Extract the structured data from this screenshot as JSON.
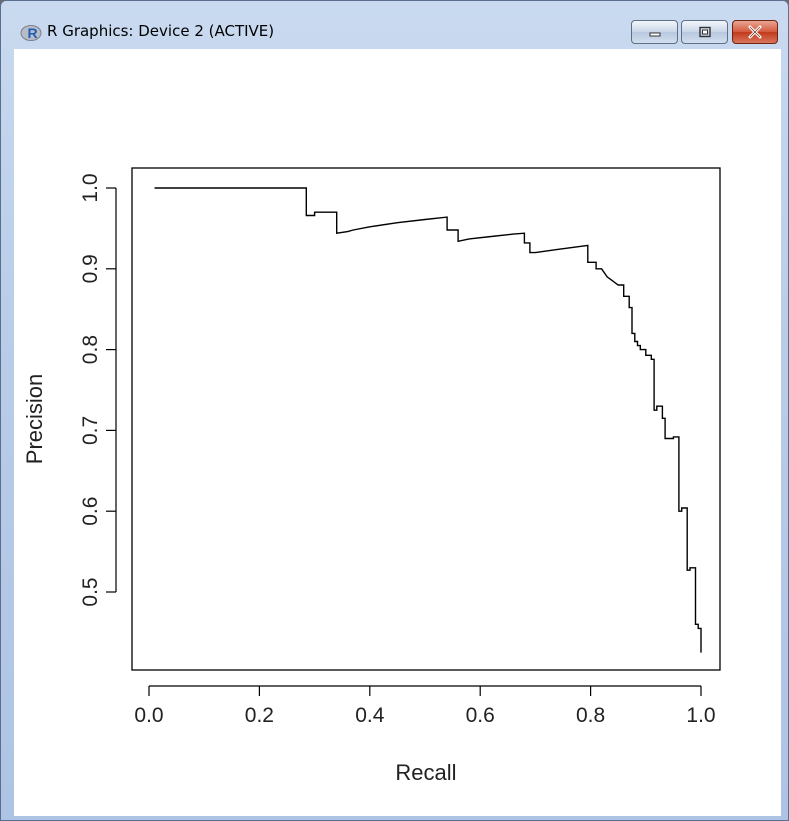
{
  "window": {
    "title": "R Graphics: Device 2 (ACTIVE)",
    "controls": [
      "minimize",
      "maximize",
      "close"
    ]
  },
  "chart_data": {
    "type": "line",
    "title": "",
    "xlabel": "Recall",
    "ylabel": "Precision",
    "xlim": [
      0.0,
      1.0
    ],
    "ylim": [
      0.4,
      1.0
    ],
    "xticks": [
      "0.0",
      "0.2",
      "0.4",
      "0.6",
      "0.8",
      "1.0"
    ],
    "yticks": [
      "0.5",
      "0.6",
      "0.7",
      "0.8",
      "0.9",
      "1.0"
    ],
    "grid": false,
    "series": [
      {
        "x": [
          0.01,
          0.285,
          0.285,
          0.3,
          0.3,
          0.34,
          0.34,
          0.36,
          0.37,
          0.4,
          0.45,
          0.5,
          0.54,
          0.54,
          0.56,
          0.56,
          0.58,
          0.62,
          0.66,
          0.68,
          0.68,
          0.69,
          0.69,
          0.7,
          0.74,
          0.795,
          0.795,
          0.81,
          0.81,
          0.82,
          0.83,
          0.83,
          0.84,
          0.84,
          0.85,
          0.86,
          0.86,
          0.87,
          0.87,
          0.875,
          0.875,
          0.88,
          0.88,
          0.885,
          0.885,
          0.89,
          0.89,
          0.9,
          0.9,
          0.91,
          0.91,
          0.915,
          0.915,
          0.92,
          0.92,
          0.93,
          0.93,
          0.935,
          0.935,
          0.95,
          0.95,
          0.96,
          0.96,
          0.965,
          0.965,
          0.975,
          0.975,
          0.98,
          0.98,
          0.99,
          0.99,
          0.995,
          0.995,
          1.0,
          1.0
        ],
        "y": [
          1.0,
          1.0,
          0.966,
          0.966,
          0.97,
          0.97,
          0.944,
          0.946,
          0.948,
          0.952,
          0.957,
          0.961,
          0.964,
          0.948,
          0.948,
          0.934,
          0.937,
          0.94,
          0.943,
          0.944,
          0.932,
          0.932,
          0.92,
          0.92,
          0.924,
          0.929,
          0.908,
          0.908,
          0.9,
          0.9,
          0.89,
          0.89,
          0.885,
          0.885,
          0.88,
          0.88,
          0.866,
          0.866,
          0.852,
          0.852,
          0.82,
          0.82,
          0.81,
          0.81,
          0.805,
          0.805,
          0.8,
          0.8,
          0.793,
          0.793,
          0.788,
          0.788,
          0.725,
          0.725,
          0.73,
          0.73,
          0.715,
          0.715,
          0.69,
          0.69,
          0.692,
          0.692,
          0.6,
          0.6,
          0.604,
          0.604,
          0.527,
          0.527,
          0.53,
          0.53,
          0.46,
          0.46,
          0.455,
          0.455,
          0.425
        ]
      }
    ]
  }
}
